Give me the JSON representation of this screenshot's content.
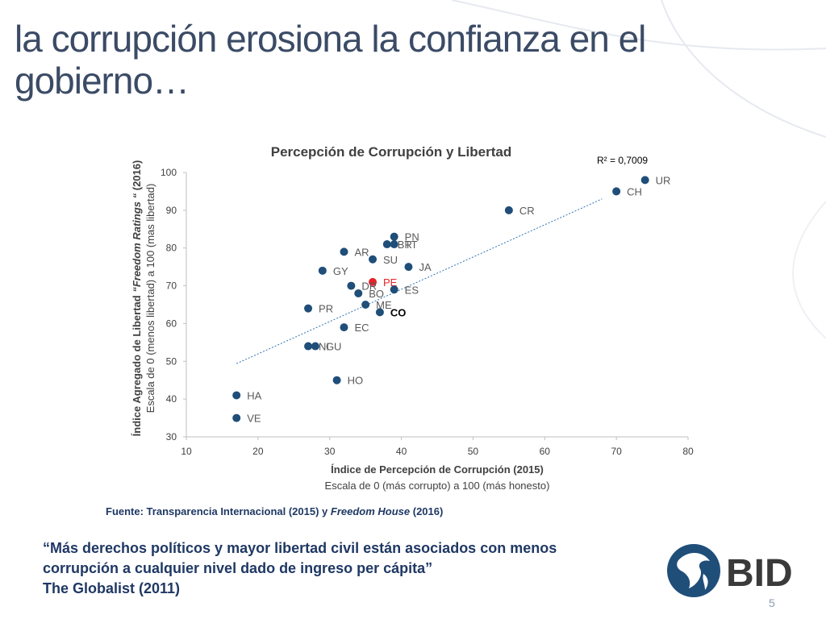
{
  "slide": {
    "title": "la corrupción erosiona la confianza en el gobierno…",
    "page_number": "5",
    "source_label": "Fuente: Transparencia Internacional (2015) y ",
    "source_italic": "Freedom House",
    "source_year": " (2016)",
    "quote_lines": [
      "“Más derechos políticos y mayor libertad civil están asociados con menos",
      "corrupción a cualquier nivel dado de ingreso per cápita”",
      "The Globalist (2011)"
    ],
    "logo_text": "BID",
    "accent": "#1f4e79",
    "highlight": "#e8212a"
  },
  "chart_data": {
    "type": "scatter",
    "title": "Percepción de Corrupción y Libertad",
    "xlabel": "Índice de Percepción de Corrupción (2015)",
    "xlabel_sub": "Escala de 0 (más corrupto) a 100 (más honesto)",
    "ylabel": "Índice Agregado de Libertad ",
    "ylabel_italic": "“Freedom Ratings “",
    "ylabel_year": " (2016)",
    "ylabel_sub": "Escala de  0 (menos libertad) a 100 (mas libertad)",
    "xlim": [
      10,
      80
    ],
    "ylim": [
      30,
      100
    ],
    "xticks": [
      "10",
      "20",
      "30",
      "40",
      "50",
      "60",
      "70",
      "80"
    ],
    "yticks": [
      "30",
      "40",
      "50",
      "60",
      "70",
      "80",
      "90",
      "100"
    ],
    "grid": false,
    "r2_label": "R² = 0,7009",
    "trendline": {
      "x": [
        17,
        68
      ],
      "y": [
        49.4,
        93
      ]
    },
    "points": [
      {
        "label": "UR",
        "x": 74,
        "y": 98
      },
      {
        "label": "CH",
        "x": 70,
        "y": 95
      },
      {
        "label": "CR",
        "x": 55,
        "y": 90
      },
      {
        "label": "PN",
        "x": 39,
        "y": 83
      },
      {
        "label": "BR",
        "x": 38,
        "y": 81
      },
      {
        "label": "TT",
        "x": 39,
        "y": 81
      },
      {
        "label": "AR",
        "x": 32,
        "y": 79
      },
      {
        "label": "SU",
        "x": 36,
        "y": 77
      },
      {
        "label": "JA",
        "x": 41,
        "y": 75
      },
      {
        "label": "GY",
        "x": 29,
        "y": 74
      },
      {
        "label": "PE",
        "x": 36,
        "y": 71,
        "highlight": true
      },
      {
        "label": "DR",
        "x": 33,
        "y": 70
      },
      {
        "label": "ES",
        "x": 39,
        "y": 69
      },
      {
        "label": "BO",
        "x": 34,
        "y": 68
      },
      {
        "label": "ME",
        "x": 35,
        "y": 65
      },
      {
        "label": "CO",
        "x": 37,
        "y": 63,
        "bold": true
      },
      {
        "label": "PR",
        "x": 27,
        "y": 64
      },
      {
        "label": "EC",
        "x": 32,
        "y": 59
      },
      {
        "label": "NI",
        "x": 27,
        "y": 54
      },
      {
        "label": "GU",
        "x": 28,
        "y": 54
      },
      {
        "label": "HO",
        "x": 31,
        "y": 45
      },
      {
        "label": "HA",
        "x": 17,
        "y": 41
      },
      {
        "label": "VE",
        "x": 17,
        "y": 35
      }
    ]
  }
}
